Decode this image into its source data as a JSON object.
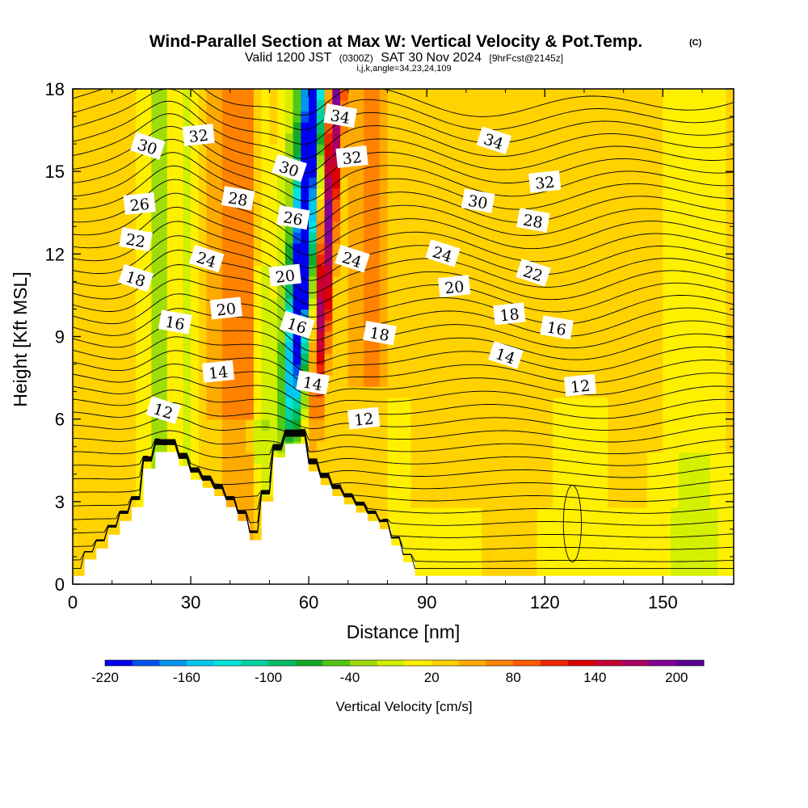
{
  "colors": {
    "velocity_palette": [
      "#0000f0",
      "#0050f0",
      "#0096f0",
      "#00c8f0",
      "#00e6dc",
      "#00d2a0",
      "#00be64",
      "#14aa28",
      "#50c814",
      "#a0dc0a",
      "#d2f000",
      "#fff000",
      "#ffd200",
      "#ffaa00",
      "#ff8200",
      "#ff5a00",
      "#f02800",
      "#dc0000",
      "#c80032",
      "#aa0064",
      "#820096",
      "#5a0096"
    ],
    "terrain": "#ffffff",
    "contour": "#000000"
  },
  "chart_data": {
    "type": "heatmap",
    "title": "Wind-Parallel Section at Max W: Vertical Velocity & Pot.Temp.",
    "title_mark": "(C)",
    "subtitle_valid": "Valid 1200 JST",
    "subtitle_utc": "(0300Z)",
    "subtitle_date": "SAT 30 Nov 2024",
    "subtitle_fcst": "[9hrFcst@2145z]",
    "subtitle_indices": "i,j,k,angle=34,23,24,109",
    "xlabel": "Distance [nm]",
    "ylabel": "Height [Kft MSL]",
    "xlim": [
      0,
      168
    ],
    "ylim": [
      0,
      18
    ],
    "xticks": [
      0,
      30,
      60,
      90,
      120,
      150
    ],
    "yticks": [
      0,
      3,
      6,
      9,
      12,
      15,
      18
    ],
    "colorbar": {
      "label": "Vertical Velocity [cm/s]",
      "min": -220,
      "max": 220,
      "step": 20,
      "tick_values": [
        -220,
        -160,
        -100,
        -40,
        20,
        80,
        140,
        200
      ]
    },
    "velocity_features": [
      {
        "name": "strong downdraft core",
        "x": 58,
        "z_range": [
          8,
          18
        ],
        "w_min": -200
      },
      {
        "name": "strong updraft core",
        "x": 64,
        "z_range": [
          8,
          18
        ],
        "w_max": 160
      },
      {
        "name": "downdraft band west",
        "x": 22,
        "z_range": [
          4,
          18
        ],
        "w_min": -60
      },
      {
        "name": "updraft band west",
        "x": 42,
        "z_range": [
          6,
          18
        ],
        "w_max": 70
      },
      {
        "name": "weak updraft",
        "x": 112,
        "z_range": [
          0,
          18
        ],
        "w_max": 40
      }
    ],
    "terrain": {
      "x": [
        0,
        3,
        6,
        9,
        12,
        15,
        18,
        21,
        24,
        27,
        30,
        33,
        36,
        39,
        42,
        45,
        48,
        51,
        54,
        57,
        60,
        63,
        66,
        69,
        72,
        75,
        78,
        81,
        84,
        87,
        90,
        93,
        96,
        99,
        168
      ],
      "z": [
        0.3,
        0.9,
        1.3,
        1.8,
        2.3,
        2.8,
        4.2,
        4.8,
        4.8,
        4.3,
        3.8,
        3.5,
        3.2,
        2.8,
        2.3,
        1.6,
        3.0,
        4.6,
        5.1,
        5.1,
        4.1,
        3.6,
        3.2,
        2.9,
        2.6,
        2.3,
        2.0,
        1.4,
        0.8,
        0.3,
        0.3,
        0.3,
        0.3,
        0.3,
        0.3
      ]
    },
    "theta_contour_labels": [
      {
        "value": "12",
        "x": 23,
        "z": 6.3
      },
      {
        "value": "14",
        "x": 37,
        "z": 7.7
      },
      {
        "value": "16",
        "x": 26,
        "z": 9.5
      },
      {
        "value": "18",
        "x": 16,
        "z": 11.1
      },
      {
        "value": "20",
        "x": 39,
        "z": 10.0
      },
      {
        "value": "22",
        "x": 16,
        "z": 12.5
      },
      {
        "value": "24",
        "x": 34,
        "z": 11.8
      },
      {
        "value": "26",
        "x": 17,
        "z": 13.8
      },
      {
        "value": "28",
        "x": 42,
        "z": 14.0
      },
      {
        "value": "30",
        "x": 19,
        "z": 15.9
      },
      {
        "value": "32",
        "x": 32,
        "z": 16.3
      },
      {
        "value": "14",
        "x": 61,
        "z": 7.3
      },
      {
        "value": "16",
        "x": 57,
        "z": 9.4
      },
      {
        "value": "20",
        "x": 54,
        "z": 11.2
      },
      {
        "value": "26",
        "x": 56,
        "z": 13.3
      },
      {
        "value": "30",
        "x": 55,
        "z": 15.1
      },
      {
        "value": "12",
        "x": 74,
        "z": 6.0
      },
      {
        "value": "18",
        "x": 78,
        "z": 9.1
      },
      {
        "value": "24",
        "x": 71,
        "z": 11.8
      },
      {
        "value": "32",
        "x": 71,
        "z": 15.5
      },
      {
        "value": "34",
        "x": 68,
        "z": 17.0
      },
      {
        "value": "24",
        "x": 94,
        "z": 12.0
      },
      {
        "value": "20",
        "x": 97,
        "z": 10.8
      },
      {
        "value": "30",
        "x": 103,
        "z": 13.9
      },
      {
        "value": "34",
        "x": 107,
        "z": 16.1
      },
      {
        "value": "32",
        "x": 120,
        "z": 14.6
      },
      {
        "value": "28",
        "x": 117,
        "z": 13.2
      },
      {
        "value": "22",
        "x": 117,
        "z": 11.3
      },
      {
        "value": "18",
        "x": 111,
        "z": 9.8
      },
      {
        "value": "16",
        "x": 123,
        "z": 9.3
      },
      {
        "value": "14",
        "x": 110,
        "z": 8.3
      },
      {
        "value": "12",
        "x": 129,
        "z": 7.2
      }
    ]
  }
}
